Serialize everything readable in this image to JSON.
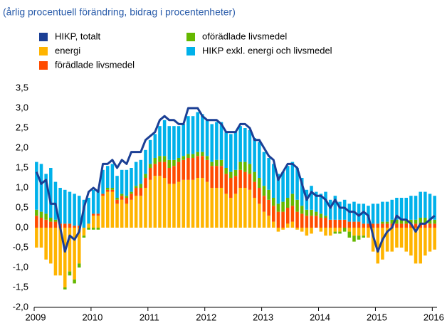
{
  "chart_data": {
    "type": "bar",
    "subtitle": "(årlig procentuell förändring, bidrag i procentenheter)",
    "categories": [
      "2009",
      null,
      null,
      null,
      null,
      null,
      null,
      null,
      null,
      null,
      null,
      null,
      "2010",
      null,
      null,
      null,
      null,
      null,
      null,
      null,
      null,
      null,
      null,
      null,
      "2011",
      null,
      null,
      null,
      null,
      null,
      null,
      null,
      null,
      null,
      null,
      null,
      "2012",
      null,
      null,
      null,
      null,
      null,
      null,
      null,
      null,
      null,
      null,
      null,
      "2013",
      null,
      null,
      null,
      null,
      null,
      null,
      null,
      null,
      null,
      null,
      null,
      "2014",
      null,
      null,
      null,
      null,
      null,
      null,
      null,
      null,
      null,
      null,
      null,
      "2015",
      null,
      null,
      null,
      null,
      null,
      null,
      null,
      null,
      null,
      null,
      null,
      "2016"
    ],
    "series": [
      {
        "name": "HIKP, totalt",
        "color": "#1b3f95",
        "kind": "line",
        "values": [
          1.4,
          1.1,
          1.2,
          0.6,
          0.6,
          0.0,
          -0.6,
          -0.2,
          -0.3,
          -0.1,
          0.5,
          0.9,
          1.0,
          0.9,
          1.6,
          1.6,
          1.7,
          1.5,
          1.7,
          1.6,
          1.9,
          1.9,
          1.9,
          2.2,
          2.3,
          2.4,
          2.7,
          2.8,
          2.7,
          2.7,
          2.6,
          2.6,
          3.0,
          3.0,
          3.0,
          2.8,
          2.7,
          2.7,
          2.7,
          2.6,
          2.4,
          2.4,
          2.4,
          2.6,
          2.6,
          2.5,
          2.2,
          2.2,
          2.0,
          1.8,
          1.7,
          1.2,
          1.4,
          1.6,
          1.6,
          1.5,
          1.1,
          0.7,
          0.9,
          0.8,
          0.8,
          0.7,
          0.5,
          0.7,
          0.5,
          0.5,
          0.4,
          0.4,
          0.3,
          0.4,
          0.3,
          -0.2,
          -0.6,
          -0.3,
          -0.1,
          0.0,
          0.3,
          0.2,
          0.2,
          0.1,
          -0.1,
          0.1,
          0.1,
          0.2,
          0.3
        ]
      },
      {
        "name": "energi",
        "color": "#ffb400",
        "values": [
          -0.5,
          -0.5,
          -0.8,
          -0.9,
          -1.2,
          -1.2,
          -1.5,
          -1.1,
          -1.3,
          -0.9,
          -0.2,
          0.1,
          0.3,
          0.3,
          0.8,
          0.9,
          0.9,
          0.6,
          0.7,
          0.6,
          0.7,
          0.8,
          0.8,
          1.0,
          1.2,
          1.3,
          1.3,
          1.25,
          1.1,
          1.1,
          1.15,
          1.2,
          1.2,
          1.2,
          1.25,
          1.25,
          1.15,
          1.0,
          1.0,
          1.0,
          0.85,
          0.75,
          0.85,
          1.0,
          1.0,
          0.95,
          0.75,
          0.6,
          0.4,
          0.3,
          0.15,
          -0.1,
          -0.05,
          0.1,
          0.15,
          -0.05,
          -0.1,
          -0.2,
          -0.15,
          0.0,
          -0.1,
          -0.2,
          -0.2,
          -0.1,
          -0.1,
          0.0,
          -0.1,
          -0.2,
          -0.2,
          -0.2,
          -0.25,
          -0.6,
          -0.9,
          -0.8,
          -0.6,
          -0.6,
          -0.5,
          -0.5,
          -0.6,
          -0.7,
          -0.9,
          -0.9,
          -0.7,
          -0.6,
          -0.55
        ]
      },
      {
        "name": "förädlade livsmedel",
        "color": "#ff4b00",
        "values": [
          0.3,
          0.25,
          0.2,
          0.15,
          0.15,
          0.1,
          0.1,
          0.1,
          0.05,
          0.05,
          0.0,
          0.0,
          0.05,
          0.05,
          0.05,
          0.05,
          0.05,
          0.1,
          0.1,
          0.15,
          0.15,
          0.2,
          0.2,
          0.25,
          0.3,
          0.3,
          0.35,
          0.4,
          0.4,
          0.45,
          0.5,
          0.5,
          0.55,
          0.55,
          0.55,
          0.55,
          0.55,
          0.55,
          0.55,
          0.55,
          0.5,
          0.5,
          0.45,
          0.45,
          0.4,
          0.4,
          0.4,
          0.4,
          0.4,
          0.4,
          0.4,
          0.4,
          0.4,
          0.4,
          0.4,
          0.4,
          0.35,
          0.3,
          0.3,
          0.3,
          0.25,
          0.25,
          0.2,
          0.2,
          0.2,
          0.2,
          0.15,
          0.15,
          0.15,
          0.1,
          0.1,
          0.1,
          0.1,
          0.1,
          0.1,
          0.1,
          0.1,
          0.1,
          0.1,
          0.1,
          0.1,
          0.1,
          0.1,
          0.1,
          0.1
        ]
      },
      {
        "name": "oförädlade livsmedel",
        "color": "#65b800",
        "values": [
          0.15,
          0.15,
          0.15,
          0.1,
          0.05,
          0.0,
          -0.05,
          -0.1,
          -0.1,
          -0.1,
          -0.05,
          -0.05,
          -0.05,
          -0.05,
          0.0,
          0.05,
          0.05,
          0.05,
          0.05,
          0.05,
          0.05,
          0.05,
          0.1,
          0.1,
          0.1,
          0.15,
          0.15,
          0.15,
          0.2,
          0.15,
          0.1,
          0.1,
          0.1,
          0.1,
          0.1,
          0.1,
          0.1,
          0.1,
          0.15,
          0.15,
          0.15,
          0.15,
          0.15,
          0.2,
          0.25,
          0.25,
          0.25,
          0.25,
          0.25,
          0.25,
          0.2,
          0.2,
          0.25,
          0.25,
          0.3,
          0.3,
          0.2,
          0.15,
          0.15,
          0.1,
          0.1,
          0.05,
          0.0,
          -0.05,
          -0.05,
          -0.1,
          -0.15,
          -0.15,
          -0.1,
          -0.05,
          0.0,
          0.0,
          0.0,
          0.05,
          0.05,
          0.1,
          0.1,
          0.1,
          0.1,
          0.1,
          0.1,
          0.15,
          0.15,
          0.1,
          0.1
        ]
      },
      {
        "name": "HIKP exkl. energi och livsmedel",
        "color": "#00b1ea",
        "values": [
          1.2,
          1.2,
          1.0,
          1.25,
          0.95,
          0.9,
          0.85,
          0.8,
          0.8,
          0.75,
          0.7,
          0.65,
          0.6,
          0.6,
          0.6,
          0.55,
          0.6,
          0.55,
          0.6,
          0.65,
          0.6,
          0.6,
          0.6,
          0.6,
          0.6,
          0.6,
          0.75,
          0.9,
          0.85,
          0.85,
          0.8,
          0.8,
          0.95,
          0.95,
          1.0,
          0.95,
          0.9,
          0.95,
          0.95,
          0.95,
          0.9,
          0.95,
          0.95,
          0.9,
          0.85,
          0.85,
          0.85,
          0.9,
          0.85,
          0.8,
          0.85,
          0.75,
          0.75,
          0.8,
          0.8,
          0.8,
          0.7,
          0.5,
          0.6,
          0.5,
          0.5,
          0.6,
          0.5,
          0.6,
          0.45,
          0.5,
          0.45,
          0.5,
          0.45,
          0.5,
          0.45,
          0.5,
          0.5,
          0.5,
          0.5,
          0.5,
          0.55,
          0.55,
          0.55,
          0.6,
          0.6,
          0.65,
          0.65,
          0.65,
          0.6
        ]
      }
    ],
    "ylim": [
      -2.0,
      3.5
    ],
    "yticks": [
      {
        "value": -2.0,
        "label": "-2,0"
      },
      {
        "value": -1.5,
        "label": "-1,5"
      },
      {
        "value": -1.0,
        "label": "-1,0"
      },
      {
        "value": -0.5,
        "label": "-0,5"
      },
      {
        "value": 0.0,
        "label": "0,0"
      },
      {
        "value": 0.5,
        "label": "0,5"
      },
      {
        "value": 1.0,
        "label": "1,0"
      },
      {
        "value": 1.5,
        "label": "1,5"
      },
      {
        "value": 2.0,
        "label": "2,0"
      },
      {
        "value": 2.5,
        "label": "2,5"
      },
      {
        "value": 3.0,
        "label": "3,0"
      },
      {
        "value": 3.5,
        "label": "3,5"
      }
    ],
    "grid": false
  }
}
